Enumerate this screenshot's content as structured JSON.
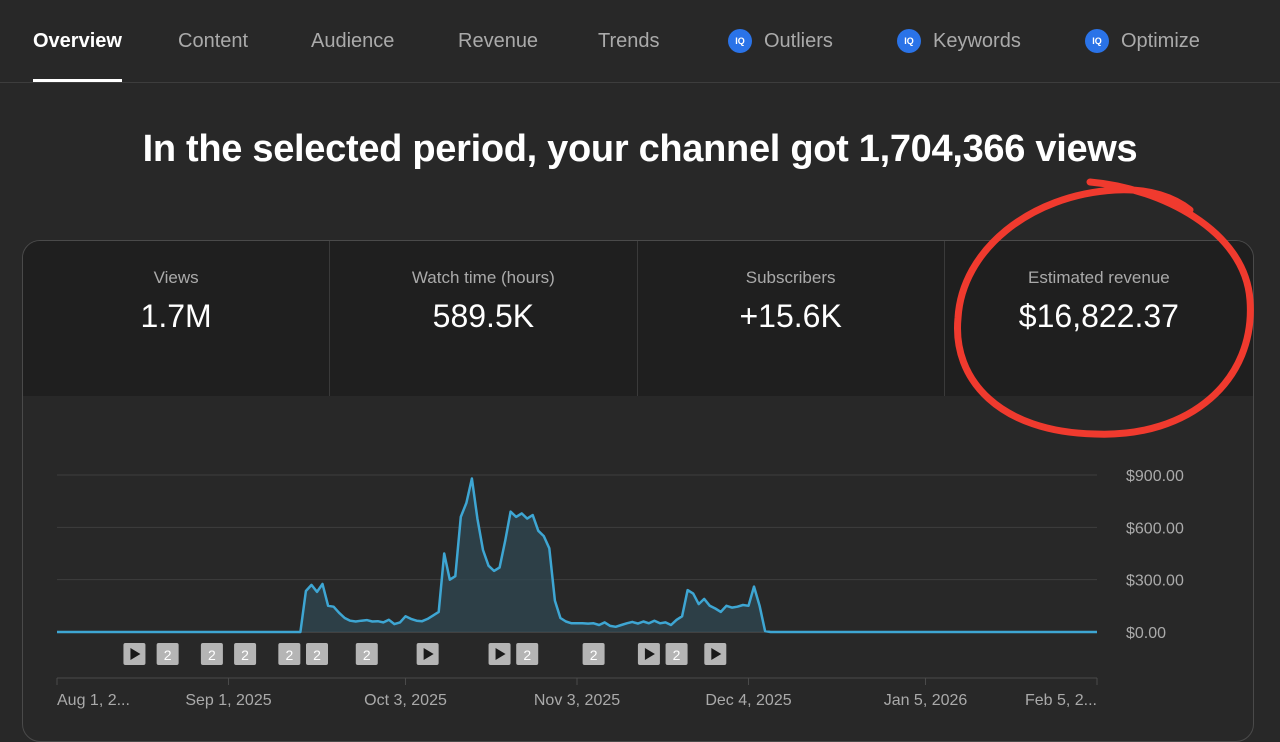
{
  "tabs": [
    {
      "label": "Overview",
      "active": true
    },
    {
      "label": "Content"
    },
    {
      "label": "Audience"
    },
    {
      "label": "Revenue"
    },
    {
      "label": "Trends"
    },
    {
      "label": "Outliers",
      "icon": "IQ"
    },
    {
      "label": "Keywords",
      "icon": "IQ"
    },
    {
      "label": "Optimize",
      "icon": "IQ"
    }
  ],
  "headline": "In the selected period, your channel got 1,704,366 views",
  "metrics": [
    {
      "label": "Views",
      "value": "1.7M"
    },
    {
      "label": "Watch time (hours)",
      "value": "589.5K"
    },
    {
      "label": "Subscribers",
      "value": "+15.6K"
    },
    {
      "label": "Estimated revenue",
      "value": "$16,822.37"
    }
  ],
  "colors": {
    "line": "#3ea6d3",
    "annotation": "#f03a2e",
    "accent": "#2a73e8"
  },
  "chart_data": {
    "type": "area",
    "y_axis_labels": [
      "$900.00",
      "$600.00",
      "$300.00",
      "$0.00"
    ],
    "y_ticks": [
      900,
      600,
      300,
      0
    ],
    "ylim": [
      0,
      900
    ],
    "x_axis_labels": [
      "Aug 1, 2...",
      "Sep 1, 2025",
      "Oct 3, 2025",
      "Nov 3, 2025",
      "Dec 4, 2025",
      "Jan 5, 2026",
      "Feb 5, 2..."
    ],
    "x_tick_days": [
      0,
      31,
      63,
      94,
      125,
      157,
      188
    ],
    "x_range_days": [
      0,
      188
    ],
    "series": [
      {
        "values_by_day": [
          [
            0,
            0
          ],
          [
            44,
            0
          ],
          [
            45,
            235
          ],
          [
            46,
            270
          ],
          [
            47,
            230
          ],
          [
            48,
            275
          ],
          [
            49,
            150
          ],
          [
            50,
            145
          ],
          [
            51,
            110
          ],
          [
            52,
            80
          ],
          [
            53,
            65
          ],
          [
            54,
            60
          ],
          [
            55,
            65
          ],
          [
            56,
            68
          ],
          [
            57,
            60
          ],
          [
            58,
            62
          ],
          [
            59,
            55
          ],
          [
            60,
            70
          ],
          [
            61,
            45
          ],
          [
            62,
            55
          ],
          [
            63,
            90
          ],
          [
            64,
            75
          ],
          [
            65,
            65
          ],
          [
            66,
            62
          ],
          [
            67,
            75
          ],
          [
            68,
            95
          ],
          [
            69,
            115
          ],
          [
            70,
            450
          ],
          [
            71,
            300
          ],
          [
            72,
            320
          ],
          [
            73,
            660
          ],
          [
            74,
            740
          ],
          [
            75,
            880
          ],
          [
            76,
            650
          ],
          [
            77,
            470
          ],
          [
            78,
            380
          ],
          [
            79,
            350
          ],
          [
            80,
            370
          ],
          [
            81,
            520
          ],
          [
            82,
            690
          ],
          [
            83,
            660
          ],
          [
            84,
            680
          ],
          [
            85,
            650
          ],
          [
            86,
            670
          ],
          [
            87,
            580
          ],
          [
            88,
            550
          ],
          [
            89,
            480
          ],
          [
            90,
            180
          ],
          [
            91,
            80
          ],
          [
            92,
            60
          ],
          [
            93,
            50
          ],
          [
            94,
            50
          ],
          [
            95,
            50
          ],
          [
            96,
            48
          ],
          [
            97,
            50
          ],
          [
            98,
            40
          ],
          [
            99,
            55
          ],
          [
            100,
            35
          ],
          [
            101,
            30
          ],
          [
            102,
            40
          ],
          [
            103,
            50
          ],
          [
            104,
            58
          ],
          [
            105,
            48
          ],
          [
            106,
            60
          ],
          [
            107,
            50
          ],
          [
            108,
            65
          ],
          [
            109,
            50
          ],
          [
            110,
            55
          ],
          [
            111,
            40
          ],
          [
            112,
            70
          ],
          [
            113,
            90
          ],
          [
            114,
            240
          ],
          [
            115,
            220
          ],
          [
            116,
            160
          ],
          [
            117,
            190
          ],
          [
            118,
            150
          ],
          [
            119,
            135
          ],
          [
            120,
            115
          ],
          [
            121,
            150
          ],
          [
            122,
            140
          ],
          [
            123,
            145
          ],
          [
            124,
            155
          ],
          [
            125,
            150
          ],
          [
            126,
            260
          ],
          [
            127,
            150
          ],
          [
            128,
            5
          ],
          [
            129,
            0
          ],
          [
            188,
            0
          ]
        ]
      }
    ],
    "video_markers": [
      {
        "day": 14,
        "kind": "play"
      },
      {
        "day": 20,
        "kind": "count",
        "label": "2"
      },
      {
        "day": 28,
        "kind": "count",
        "label": "2"
      },
      {
        "day": 34,
        "kind": "count",
        "label": "2"
      },
      {
        "day": 42,
        "kind": "count",
        "label": "2"
      },
      {
        "day": 47,
        "kind": "count",
        "label": "2"
      },
      {
        "day": 56,
        "kind": "count",
        "label": "2"
      },
      {
        "day": 67,
        "kind": "play"
      },
      {
        "day": 80,
        "kind": "play"
      },
      {
        "day": 85,
        "kind": "count",
        "label": "2"
      },
      {
        "day": 97,
        "kind": "count",
        "label": "2"
      },
      {
        "day": 107,
        "kind": "play"
      },
      {
        "day": 112,
        "kind": "count",
        "label": "2"
      },
      {
        "day": 119,
        "kind": "play"
      }
    ]
  }
}
